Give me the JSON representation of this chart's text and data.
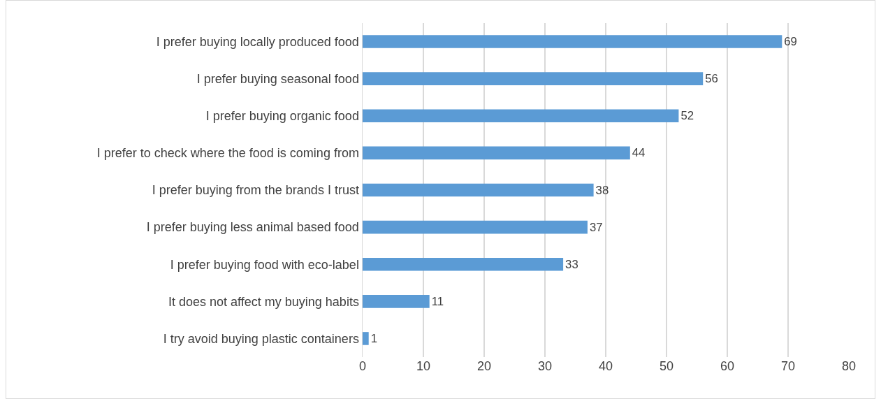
{
  "chart_data": {
    "type": "bar",
    "orientation": "horizontal",
    "categories": [
      "I prefer buying locally produced food",
      "I prefer buying seasonal food",
      "I prefer buying organic food",
      "I prefer to check where the food is coming from",
      "I prefer buying from the brands I trust",
      "I prefer buying less animal based food",
      "I prefer buying food with eco-label",
      "It does not affect my buying habits",
      "I try avoid buying plastic containers"
    ],
    "values": [
      69,
      56,
      52,
      44,
      38,
      37,
      33,
      11,
      1
    ],
    "color": "#5b9bd5",
    "xlim": [
      0,
      80
    ],
    "xticks": [
      0,
      10,
      20,
      30,
      40,
      50,
      60,
      70,
      80
    ],
    "grid": "x",
    "legend": false,
    "data_labels": true
  }
}
